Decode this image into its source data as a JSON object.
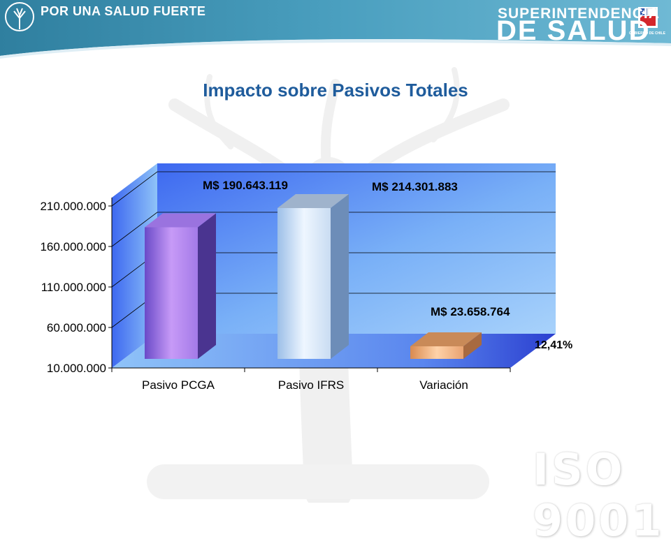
{
  "header": {
    "slogan": "POR UNA SALUD FUERTE",
    "org_line1": "SUPERINTENDENCIA",
    "org_line2": "DE SALUD",
    "gov_label": "GOBIERNO DE CHILE"
  },
  "watermark": "ISO 9001",
  "colors": {
    "header_teal": "#3b8fae",
    "title_blue": "#1f5c9c",
    "bar_pcga": "#b98af0",
    "bar_ifrs": "#dcecfb",
    "bar_variacion": "#f0b07a"
  },
  "chart_data": {
    "type": "bar",
    "title": "Impacto sobre Pasivos Totales",
    "categories": [
      "Pasivo PCGA",
      "Pasivo IFRS",
      "Variación"
    ],
    "values": [
      190643119,
      214301883,
      23658764
    ],
    "data_labels": [
      "M$ 190.643.119",
      "M$ 214.301.883",
      "M$ 23.658.764"
    ],
    "annotation": "12,41%",
    "yticks": [
      "10.000.000",
      "60.000.000",
      "110.000.000",
      "160.000.000",
      "210.000.000"
    ],
    "ytick_values": [
      10000000,
      60000000,
      110000000,
      160000000,
      210000000
    ],
    "ylim": [
      10000000,
      210000000
    ],
    "grid": true,
    "three_d": true,
    "legend": "none"
  }
}
